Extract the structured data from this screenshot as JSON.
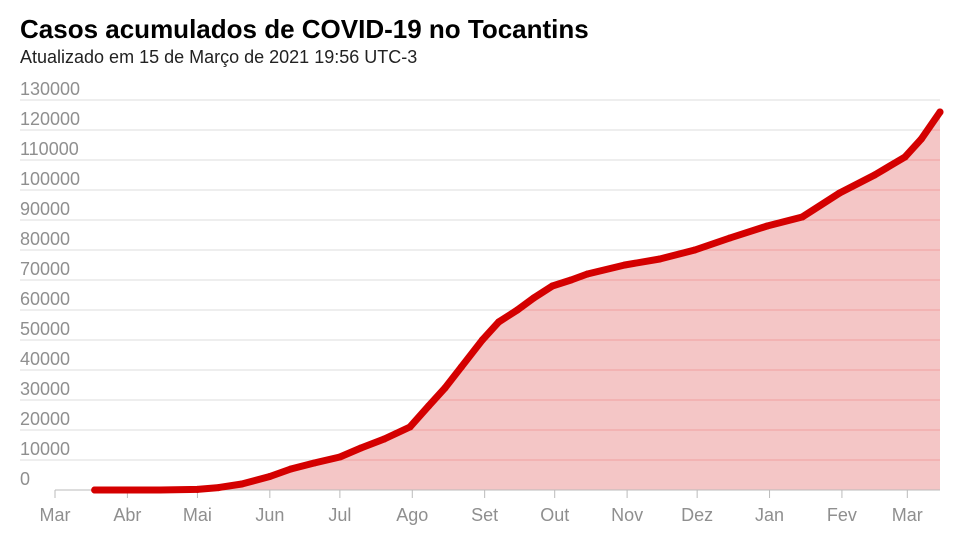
{
  "title": "Casos acumulados de COVID-19 no Tocantins",
  "subtitle": "Atualizado em 15 de Março de 2021 19:56 UTC-3",
  "colors": {
    "line": "#d40000",
    "area": "#f4c6c6",
    "grid": "#dddddd",
    "grid_inside": "#f0a0a0",
    "axis": "#bbbbbb",
    "tick_text": "#8f8f8f"
  },
  "chart_data": {
    "type": "area",
    "title": "Casos acumulados de COVID-19 no Tocantins",
    "subtitle": "Atualizado em 15 de Março de 2021 19:56 UTC-3",
    "xlabel": "",
    "ylabel": "",
    "x_range": [
      "2020-03-01",
      "2021-03-15"
    ],
    "ylim": [
      0,
      130000
    ],
    "y_ticks": [
      0,
      10000,
      20000,
      30000,
      40000,
      50000,
      60000,
      70000,
      80000,
      90000,
      100000,
      110000,
      120000,
      130000
    ],
    "x_ticks": [
      {
        "label": "Mar",
        "date": "2020-03-01"
      },
      {
        "label": "Abr",
        "date": "2020-04-01"
      },
      {
        "label": "Mai",
        "date": "2020-05-01"
      },
      {
        "label": "Jun",
        "date": "2020-06-01"
      },
      {
        "label": "Jul",
        "date": "2020-07-01"
      },
      {
        "label": "Ago",
        "date": "2020-08-01"
      },
      {
        "label": "Set",
        "date": "2020-09-01"
      },
      {
        "label": "Out",
        "date": "2020-10-01"
      },
      {
        "label": "Nov",
        "date": "2020-11-01"
      },
      {
        "label": "Dez",
        "date": "2020-12-01"
      },
      {
        "label": "Jan",
        "date": "2021-01-01"
      },
      {
        "label": "Fev",
        "date": "2021-02-01"
      },
      {
        "label": "Mar",
        "date": "2021-03-01"
      }
    ],
    "grid": true,
    "series": [
      {
        "x": [
          "2020-03-18",
          "2020-04-01",
          "2020-04-15",
          "2020-05-01",
          "2020-05-10",
          "2020-05-20",
          "2020-06-01",
          "2020-06-10",
          "2020-06-20",
          "2020-07-01",
          "2020-07-10",
          "2020-07-20",
          "2020-07-31",
          "2020-08-08",
          "2020-08-15",
          "2020-08-22",
          "2020-08-31",
          "2020-09-07",
          "2020-09-15",
          "2020-09-22",
          "2020-09-30",
          "2020-10-08",
          "2020-10-15",
          "2020-10-31",
          "2020-11-15",
          "2020-11-30",
          "2020-12-15",
          "2020-12-31",
          "2021-01-15",
          "2021-01-31",
          "2021-02-15",
          "2021-02-28",
          "2021-03-07",
          "2021-03-15"
        ],
        "values": [
          0,
          0,
          0,
          200,
          800,
          2000,
          4500,
          7000,
          9000,
          11000,
          14000,
          17000,
          21000,
          28000,
          34000,
          41000,
          50000,
          56000,
          60000,
          64000,
          68000,
          70000,
          72000,
          75000,
          77000,
          80000,
          84000,
          88000,
          91000,
          99000,
          105000,
          111000,
          117000,
          126000
        ]
      }
    ]
  }
}
